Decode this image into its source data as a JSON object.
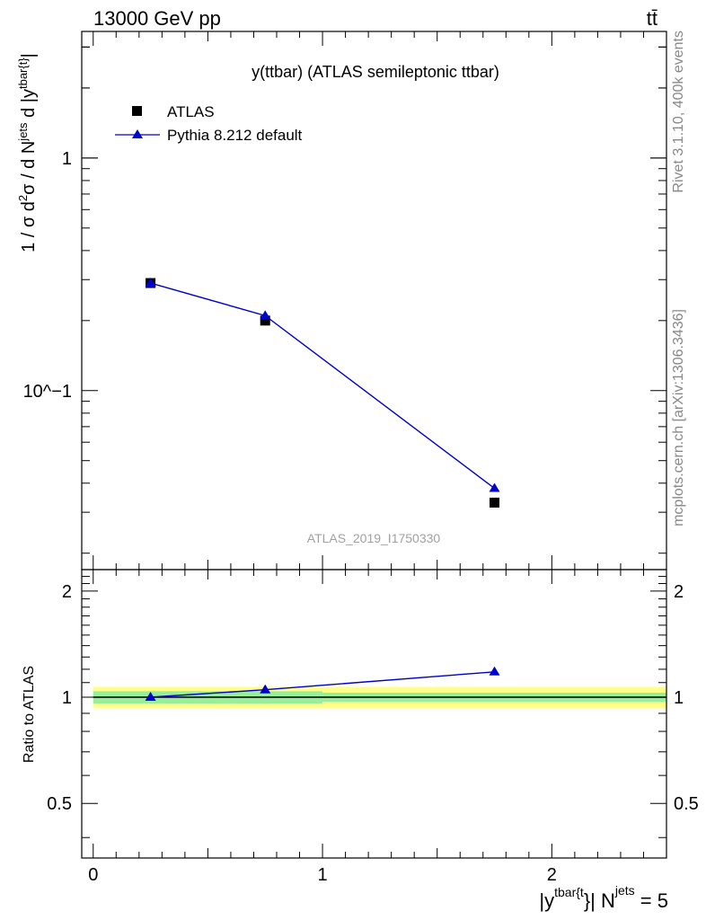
{
  "header": {
    "left": "13000 GeV pp",
    "right": "tt̄"
  },
  "side_labels": {
    "rivet": "Rivet 3.1.10,  400k events",
    "mcplots": "mcplots.cern.ch [arXiv:1306.3436]"
  },
  "chart_data": {
    "type": "line",
    "title": "y(ttbar) (ATLAS semileptonic ttbar)",
    "watermark": "ATLAS_2019_I1750330",
    "ylabel_main": "1 / σ d²σ / d N^jets d |y^tbar{t}|",
    "ylabel_ratio": "Ratio to ATLAS",
    "xlabel": "|y^tbar{t}| N^jets = 5",
    "x_ticks": [
      "0",
      "1",
      "2"
    ],
    "main_y_ticks": [
      "1",
      "10^−1"
    ],
    "ratio_y_ticks": [
      "2",
      "1",
      "0.5"
    ],
    "xlim": [
      -0.05,
      2.5
    ],
    "main_ylim": [
      0.017,
      3.5
    ],
    "main_yscale": "log",
    "ratio_ylim": [
      0.35,
      2.3
    ],
    "ratio_yscale": "log",
    "legend_placement": "top-left",
    "series": [
      {
        "name": "ATLAS",
        "marker": "square",
        "color": "#000000",
        "x": [
          0.25,
          0.75,
          1.75
        ],
        "y": [
          0.29,
          0.2,
          0.033
        ],
        "ratio": [
          1.0,
          1.0,
          1.0
        ]
      },
      {
        "name": "Pythia 8.212 default",
        "marker": "triangle",
        "color": "#0000cc",
        "x": [
          0.25,
          0.75,
          1.75
        ],
        "y": [
          0.29,
          0.21,
          0.038
        ],
        "ratio": [
          1.0,
          1.05,
          1.18
        ]
      }
    ],
    "ratio_bands": [
      {
        "x_from": 0.0,
        "x_to": 1.0,
        "inner": [
          0.96,
          1.04
        ],
        "outer": [
          0.93,
          1.07
        ]
      },
      {
        "x_from": 1.0,
        "x_to": 2.5,
        "inner": [
          0.97,
          1.03
        ],
        "outer": [
          0.93,
          1.07
        ]
      }
    ],
    "band_colors": {
      "inner": "#99ee99",
      "outer": "#ffff88"
    }
  }
}
